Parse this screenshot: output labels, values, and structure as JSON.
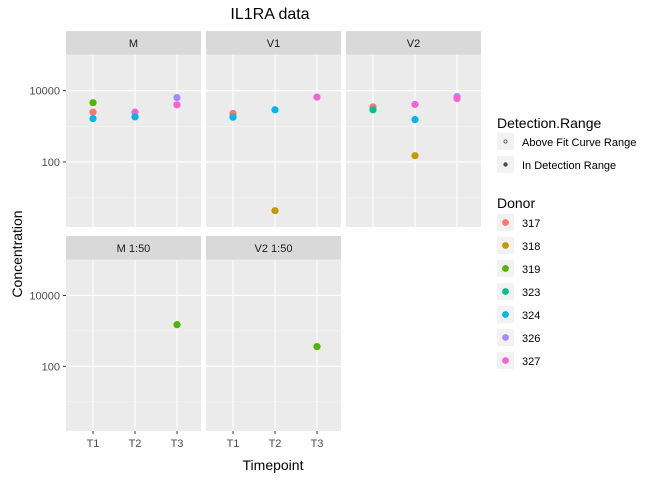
{
  "chart_data": {
    "type": "scatter",
    "title": "IL1RA data",
    "xlabel": "Timepoint",
    "ylabel": "Concentration",
    "x_categories": [
      "T1",
      "T2",
      "T3"
    ],
    "y_scale": "log10",
    "y_ticks": [
      {
        "value": 100,
        "label": "100"
      },
      {
        "value": 10000,
        "label": "10000"
      }
    ],
    "y_range": [
      1.5,
      100000
    ],
    "facets": [
      {
        "label": "M",
        "points": [
          {
            "x": "T1",
            "y": 2500,
            "donor": "317",
            "range": "In Detection Range"
          },
          {
            "x": "T1",
            "y": 4600,
            "donor": "319",
            "range": "In Detection Range"
          },
          {
            "x": "T1",
            "y": 1650,
            "donor": "324",
            "range": "In Detection Range"
          },
          {
            "x": "T2",
            "y": 2500,
            "donor": "327",
            "range": "In Detection Range"
          },
          {
            "x": "T2",
            "y": 1850,
            "donor": "318",
            "range": "In Detection Range"
          },
          {
            "x": "T2",
            "y": 1850,
            "donor": "324",
            "range": "In Detection Range"
          },
          {
            "x": "T3",
            "y": 6400,
            "donor": "326",
            "range": "In Detection Range"
          },
          {
            "x": "T3",
            "y": 4000,
            "donor": "327",
            "range": "In Detection Range"
          }
        ]
      },
      {
        "label": "V1",
        "points": [
          {
            "x": "T1",
            "y": 2300,
            "donor": "317",
            "range": "In Detection Range"
          },
          {
            "x": "T1",
            "y": 1800,
            "donor": "324",
            "range": "In Detection Range"
          },
          {
            "x": "T2",
            "y": 2900,
            "donor": "324",
            "range": "In Detection Range"
          },
          {
            "x": "T2",
            "y": 4.3,
            "donor": "318",
            "range": "In Detection Range"
          },
          {
            "x": "T3",
            "y": 6600,
            "donor": "327",
            "range": "In Detection Range"
          }
        ]
      },
      {
        "label": "V2",
        "points": [
          {
            "x": "T1",
            "y": 3500,
            "donor": "317",
            "range": "In Detection Range"
          },
          {
            "x": "T1",
            "y": 2900,
            "donor": "323",
            "range": "In Detection Range"
          },
          {
            "x": "T2",
            "y": 4100,
            "donor": "327",
            "range": "In Detection Range"
          },
          {
            "x": "T2",
            "y": 1550,
            "donor": "324",
            "range": "In Detection Range"
          },
          {
            "x": "T2",
            "y": 150,
            "donor": "318",
            "range": "In Detection Range"
          },
          {
            "x": "T3",
            "y": 6800,
            "donor": "326",
            "range": "In Detection Range"
          },
          {
            "x": "T3",
            "y": 6000,
            "donor": "327",
            "range": "In Detection Range"
          }
        ]
      },
      {
        "label": "M 1:50",
        "points": [
          {
            "x": "T3",
            "y": 1500,
            "donor": "319",
            "range": "In Detection Range"
          }
        ]
      },
      {
        "label": "V2 1:50",
        "points": [
          {
            "x": "T3",
            "y": 360,
            "donor": "319",
            "range": "In Detection Range"
          }
        ]
      }
    ],
    "legends": {
      "detection_range": {
        "title": "Detection.Range",
        "entries": [
          "Above Fit Curve Range",
          "In Detection Range"
        ]
      },
      "donor": {
        "title": "Donor",
        "entries": [
          {
            "name": "317",
            "color": "#F8766D"
          },
          {
            "name": "318",
            "color": "#C49A00"
          },
          {
            "name": "319",
            "color": "#53B400"
          },
          {
            "name": "323",
            "color": "#00C094"
          },
          {
            "name": "324",
            "color": "#00B6EB"
          },
          {
            "name": "326",
            "color": "#A58AFF"
          },
          {
            "name": "327",
            "color": "#FB61D7"
          }
        ]
      }
    },
    "legend_position": "right",
    "grid": true
  }
}
